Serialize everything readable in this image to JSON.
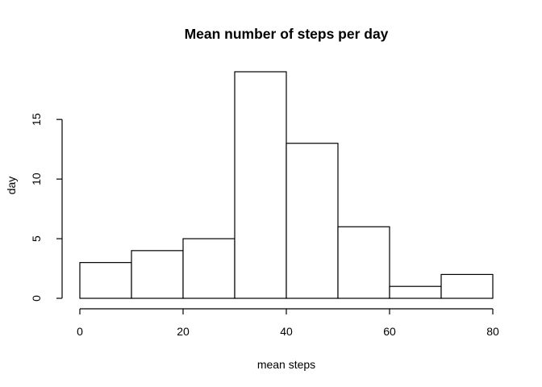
{
  "chart_data": {
    "type": "bar",
    "subtype": "histogram",
    "title": "Mean number of steps per day",
    "xlabel": "mean steps",
    "ylabel": "day",
    "bins": [
      {
        "x0": 0,
        "x1": 10,
        "count": 3
      },
      {
        "x0": 10,
        "x1": 20,
        "count": 4
      },
      {
        "x0": 20,
        "x1": 30,
        "count": 5
      },
      {
        "x0": 30,
        "x1": 40,
        "count": 19
      },
      {
        "x0": 40,
        "x1": 50,
        "count": 13
      },
      {
        "x0": 50,
        "x1": 60,
        "count": 6
      },
      {
        "x0": 60,
        "x1": 70,
        "count": 1
      },
      {
        "x0": 70,
        "x1": 80,
        "count": 2
      }
    ],
    "xlim": [
      0,
      80
    ],
    "ylim": [
      0,
      19
    ],
    "x_ticks": [
      "0",
      "20",
      "40",
      "60",
      "80"
    ],
    "y_ticks": [
      "0",
      "5",
      "10",
      "15"
    ],
    "grid": false,
    "bar_fill": "#ffffff",
    "bar_stroke": "#000000"
  }
}
